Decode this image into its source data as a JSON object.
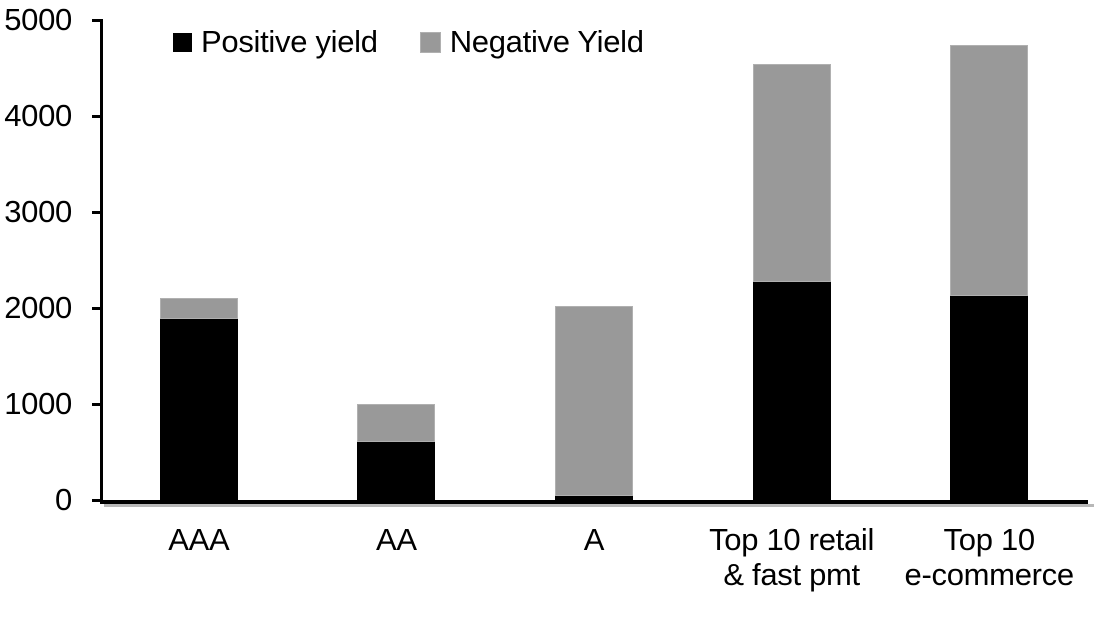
{
  "chart_data": {
    "type": "bar",
    "stacked": true,
    "title": "",
    "categories": [
      "AAA",
      "AA",
      "A",
      "Top 10 retail\n& fast pmt",
      "Top 10\ne-commerce"
    ],
    "series": [
      {
        "name": "Positive yield",
        "color": "#000000",
        "values": [
          1890,
          600,
          40,
          2270,
          2130
        ]
      },
      {
        "name": "Negative Yield",
        "color": "#999999",
        "border": "#b0b0b0",
        "values": [
          210,
          400,
          1980,
          2270,
          2610
        ]
      }
    ],
    "ylim": [
      0,
      5000
    ],
    "ytick_step": 1000,
    "ytick_labels": [
      "0",
      "1000",
      "2000",
      "3000",
      "4000",
      "5000"
    ],
    "xlabel": "",
    "ylabel": "",
    "grid": false,
    "legend_position": "top-left",
    "axis_color": "#000000"
  }
}
